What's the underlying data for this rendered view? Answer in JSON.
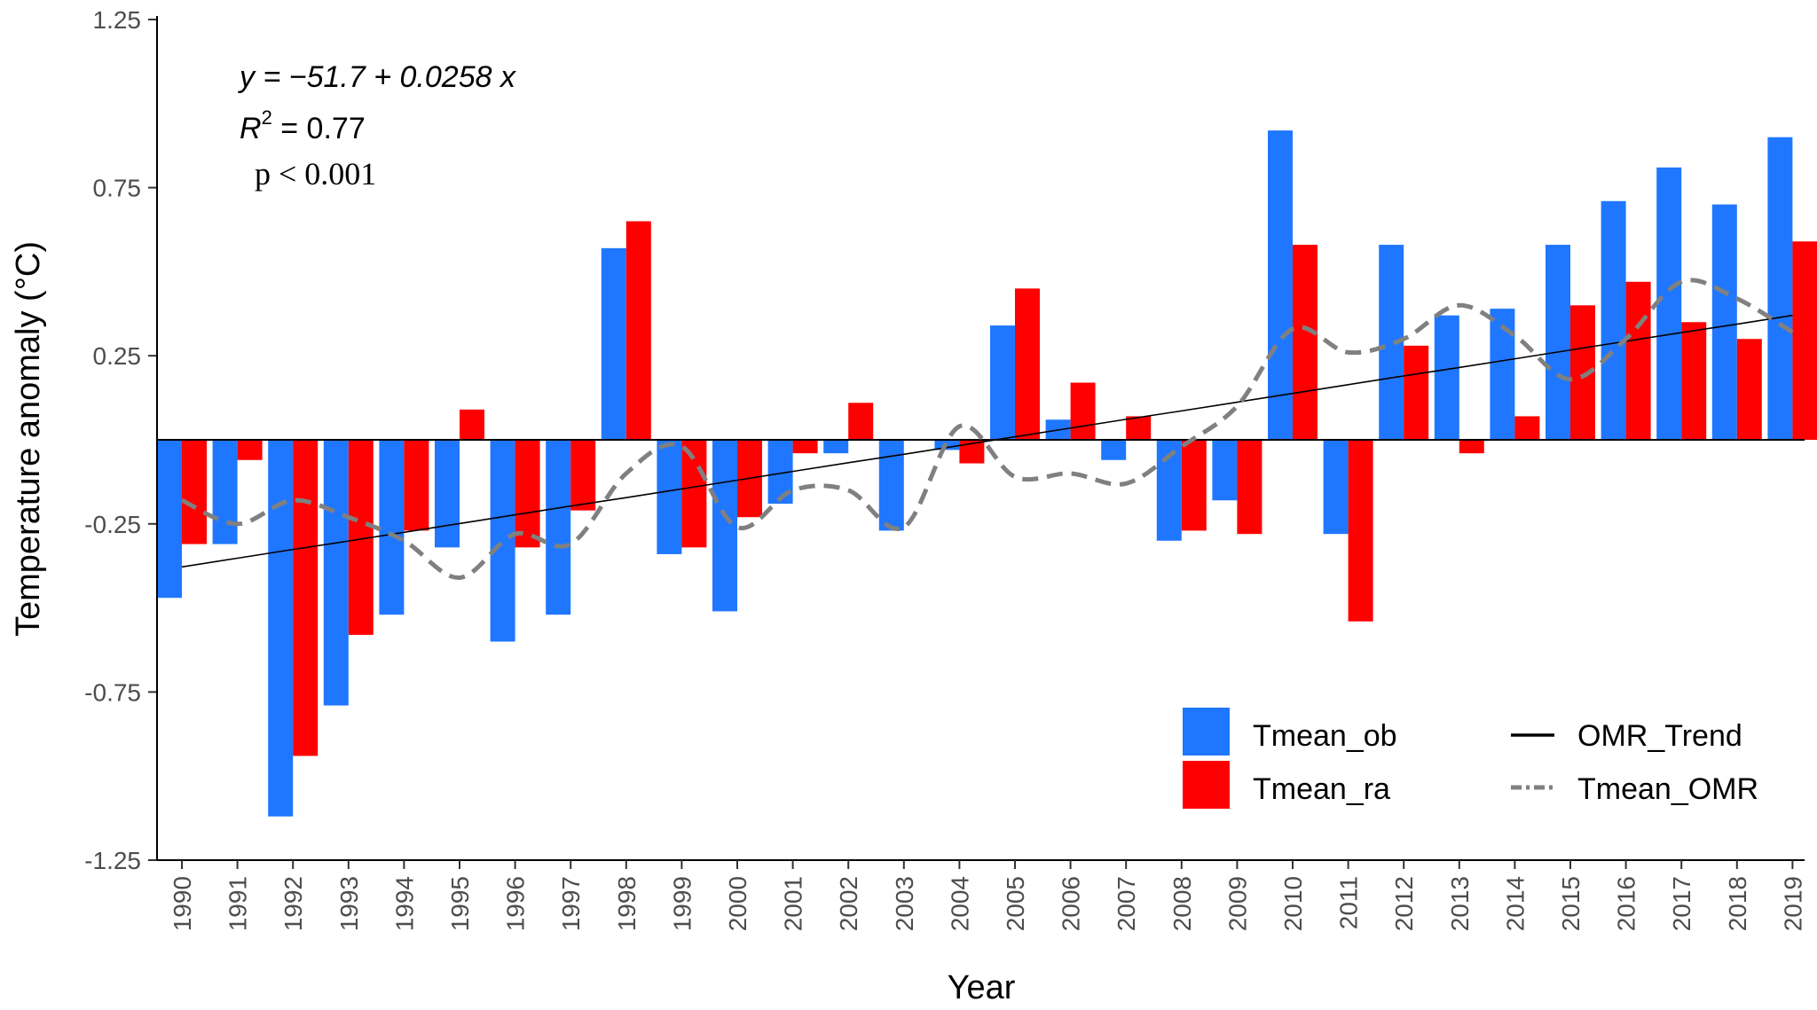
{
  "chart_data": {
    "type": "bar",
    "xlabel": "Year",
    "ylabel": "Temperature anomaly (°C)",
    "ylim": [
      -1.25,
      1.25
    ],
    "yticks": [
      "1.25",
      "0.75",
      "0.25",
      "-0.25",
      "-0.75",
      "-1.25"
    ],
    "ytick_values": [
      1.25,
      0.75,
      0.25,
      -0.25,
      -0.75,
      -1.25
    ],
    "categories": [
      "1990",
      "1991",
      "1992",
      "1993",
      "1994",
      "1995",
      "1996",
      "1997",
      "1998",
      "1999",
      "2000",
      "2001",
      "2002",
      "2003",
      "2004",
      "2005",
      "2006",
      "2007",
      "2008",
      "2009",
      "2010",
      "2011",
      "2012",
      "2013",
      "2014",
      "2015",
      "2016",
      "2017",
      "2018",
      "2019"
    ],
    "series": [
      {
        "name": "Tmean_ob",
        "color": "#1f77ff",
        "values": [
          -0.47,
          -0.31,
          -1.12,
          -0.79,
          -0.52,
          -0.32,
          -0.6,
          -0.52,
          0.57,
          -0.34,
          -0.51,
          -0.19,
          -0.04,
          -0.27,
          -0.03,
          0.34,
          0.06,
          -0.06,
          -0.3,
          -0.18,
          0.92,
          -0.28,
          0.58,
          0.37,
          0.39,
          0.58,
          0.71,
          0.81,
          0.7,
          0.9
        ]
      },
      {
        "name": "Tmean_ra",
        "color": "#ff0000",
        "values": [
          -0.31,
          -0.06,
          -0.94,
          -0.58,
          -0.27,
          0.09,
          -0.32,
          -0.21,
          0.65,
          -0.32,
          -0.23,
          -0.04,
          0.11,
          0.0,
          -0.07,
          0.45,
          0.17,
          0.07,
          -0.27,
          -0.28,
          0.58,
          -0.54,
          0.28,
          -0.04,
          0.07,
          0.4,
          0.47,
          0.35,
          0.3,
          0.59
        ]
      }
    ],
    "lines": [
      {
        "name": "OMR_Trend",
        "style": "solid",
        "color": "#000000",
        "values": [
          -0.378,
          -0.352,
          -0.326,
          -0.301,
          -0.275,
          -0.249,
          -0.223,
          -0.197,
          -0.172,
          -0.146,
          -0.12,
          -0.094,
          -0.068,
          -0.043,
          -0.017,
          0.009,
          0.035,
          0.061,
          0.086,
          0.112,
          0.138,
          0.164,
          0.19,
          0.215,
          0.241,
          0.267,
          0.293,
          0.319,
          0.344,
          0.37
        ]
      },
      {
        "name": "Tmean_OMR",
        "style": "dashed",
        "color": "#808080",
        "values": [
          -0.18,
          -0.25,
          -0.18,
          -0.23,
          -0.3,
          -0.41,
          -0.28,
          -0.31,
          -0.1,
          -0.02,
          -0.26,
          -0.15,
          -0.15,
          -0.26,
          0.04,
          -0.11,
          -0.1,
          -0.13,
          -0.02,
          0.1,
          0.33,
          0.26,
          0.3,
          0.4,
          0.31,
          0.18,
          0.3,
          0.47,
          0.42,
          0.32
        ]
      }
    ],
    "legend": {
      "placement": "bottom-right",
      "items": [
        {
          "label": "Tmean_ob",
          "kind": "box",
          "color": "#1f77ff"
        },
        {
          "label": "Tmean_ra",
          "kind": "box",
          "color": "#ff0000"
        },
        {
          "label": "OMR_Trend",
          "kind": "solid-line",
          "color": "#000000"
        },
        {
          "label": "Tmean_OMR",
          "kind": "dashed-line",
          "color": "#808080"
        }
      ]
    },
    "annotations": {
      "equation": "y = −51.7 + 0.0258 x",
      "r2_label": "R",
      "r2_exp": "2",
      "r2_value": " = 0.77",
      "pvalue": "p < 0.001"
    }
  }
}
